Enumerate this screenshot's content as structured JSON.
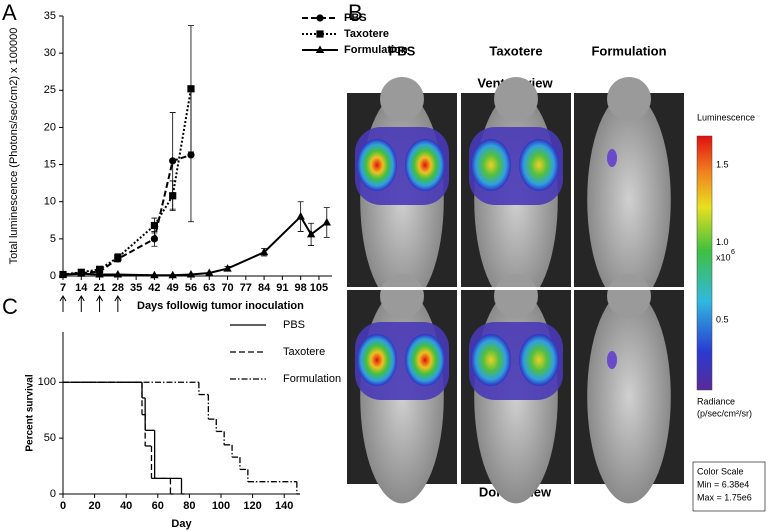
{
  "panel_labels": [
    "A",
    "B",
    "C"
  ],
  "chart_data": [
    {
      "type": "line",
      "y_label": "Total luminescence (Photons/sec/cm2) x 100000",
      "x_label": "Days followig tumor inoculation",
      "xlim": [
        7,
        110
      ],
      "xticks": [
        7,
        14,
        21,
        28,
        35,
        42,
        49,
        56,
        63,
        70,
        77,
        84,
        91,
        98,
        105
      ],
      "ylim": [
        0,
        35
      ],
      "yticks": [
        0,
        5,
        10,
        15,
        20,
        25,
        30,
        35
      ],
      "legend": "top-right",
      "series": [
        {
          "name": "PBS",
          "color": "#000000",
          "line_style": "dashed",
          "marker": "circle",
          "x": [
            7,
            14,
            21,
            28,
            42,
            49,
            56
          ],
          "values": [
            0.2,
            0.4,
            0.6,
            2.3,
            5.0,
            15.5,
            16.3
          ],
          "errors": [
            0.1,
            0.2,
            0.2,
            0.4,
            1.0,
            6.5,
            9.0
          ]
        },
        {
          "name": "Taxotere",
          "color": "#000000",
          "line_style": "dotted",
          "marker": "square",
          "x": [
            7,
            14,
            21,
            28,
            42,
            49,
            56
          ],
          "values": [
            0.2,
            0.5,
            0.9,
            2.5,
            6.8,
            10.8,
            25.2
          ],
          "errors": [
            0.1,
            0.2,
            0.3,
            0.5,
            1.0,
            2.0,
            8.5
          ]
        },
        {
          "name": "Formulation",
          "color": "#000000",
          "line_style": "solid",
          "marker": "triangle",
          "x": [
            7,
            14,
            21,
            28,
            42,
            49,
            56,
            63,
            70,
            84,
            98,
            102,
            108
          ],
          "values": [
            0.2,
            0.3,
            0.2,
            0.2,
            0.1,
            0.1,
            0.2,
            0.4,
            1.0,
            3.2,
            8.0,
            5.6,
            7.2
          ],
          "errors": [
            null,
            null,
            null,
            null,
            null,
            null,
            null,
            null,
            0.3,
            0.5,
            2.0,
            1.5,
            2.0
          ]
        }
      ]
    },
    {
      "type": "step",
      "y_label": "Percent survival",
      "x_label": "Day",
      "xlim": [
        0,
        150
      ],
      "xticks": [
        0,
        20,
        40,
        60,
        80,
        100,
        120,
        140
      ],
      "ylim": [
        0,
        145
      ],
      "yticks": [
        0,
        50,
        100
      ],
      "legend": "top-right",
      "series": [
        {
          "name": "PBS",
          "color": "#000000",
          "line_style": "solid",
          "x": [
            0,
            50,
            52,
            58,
            75
          ],
          "values": [
            100,
            86,
            57,
            14,
            0
          ]
        },
        {
          "name": "Taxotere",
          "color": "#000000",
          "line_style": "dashed",
          "x": [
            0,
            50,
            52,
            56,
            68
          ],
          "values": [
            100,
            71,
            43,
            14,
            0
          ]
        },
        {
          "name": "Formulation",
          "color": "#000000",
          "line_style": "dashdot",
          "x": [
            0,
            86,
            92,
            97,
            102,
            107,
            112,
            117,
            148
          ],
          "values": [
            100,
            89,
            67,
            56,
            44,
            33,
            22,
            11,
            0
          ]
        }
      ]
    }
  ],
  "imaging": {
    "columns": [
      "PBS",
      "Taxotere",
      "Formulation"
    ],
    "top_label": "Ventral view",
    "bottom_label": "Dorsal view",
    "colorbar": {
      "title": "Luminescence",
      "ticks": [
        "1.5",
        "1.0",
        "0.5"
      ],
      "multiplier": "x10",
      "exponent": "6",
      "unit_lines": [
        "Radiance",
        "(p/sec/cm²/sr)"
      ],
      "scale_box": [
        "Color Scale",
        "Min = 6.38e4",
        "Max = 1.75e6"
      ]
    }
  }
}
